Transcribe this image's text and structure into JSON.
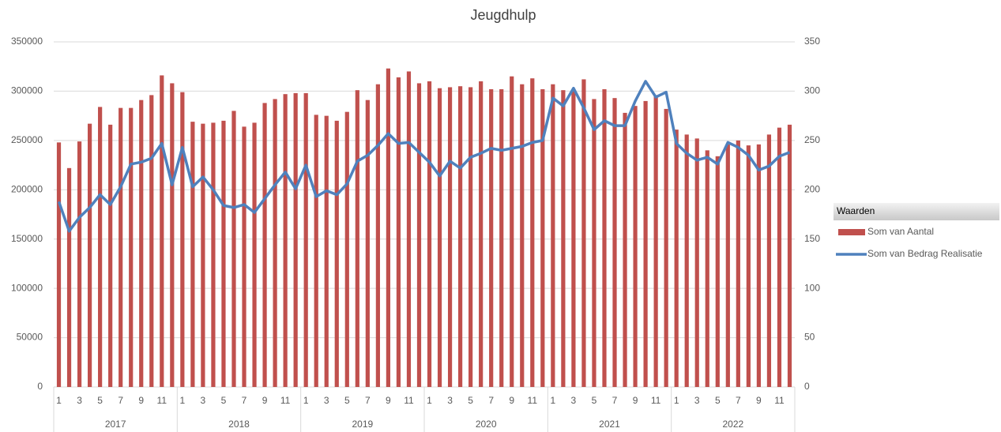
{
  "chart_data": {
    "type": "bar-line",
    "title": "Jeugdhulp",
    "categories": [
      "1",
      null,
      "3",
      null,
      "5",
      null,
      "7",
      null,
      "9",
      null,
      "11",
      null,
      "1",
      null,
      "3",
      null,
      "5",
      null,
      "7",
      null,
      "9",
      null,
      "11",
      null,
      "1",
      null,
      "3",
      null,
      "5",
      null,
      "7",
      null,
      "9",
      null,
      "11",
      null,
      "1",
      null,
      "3",
      null,
      "5",
      null,
      "7",
      null,
      "9",
      null,
      "11",
      null,
      "1",
      null,
      "3",
      null,
      "5",
      null,
      "7",
      null,
      "9",
      null,
      "11",
      null,
      "1",
      null,
      "3",
      null,
      "5",
      null,
      "7",
      null,
      "9",
      null,
      "11",
      null
    ],
    "years": [
      "2017",
      "2018",
      "2019",
      "2020",
      "2021",
      "2022"
    ],
    "series": [
      {
        "name": "Som van Aantal",
        "type": "bar",
        "color": "#c0504d",
        "values": [
          248000,
          222000,
          249000,
          267000,
          284000,
          266000,
          283000,
          283000,
          291000,
          296000,
          316000,
          308000,
          299000,
          269000,
          267000,
          268000,
          270000,
          280000,
          264000,
          268000,
          288000,
          292000,
          297000,
          298000,
          298000,
          276000,
          275000,
          270000,
          279000,
          301000,
          291000,
          307000,
          323000,
          314000,
          320000,
          308000,
          310000,
          303000,
          304000,
          305000,
          304000,
          310000,
          302000,
          302000,
          315000,
          307000,
          313000,
          302000,
          307000,
          301000,
          302000,
          312000,
          292000,
          302000,
          293000,
          278000,
          285000,
          290000,
          296000,
          282000,
          261000,
          256000,
          252000,
          240000,
          234000,
          246000,
          250000,
          245000,
          246000,
          256000,
          263000,
          266000
        ]
      },
      {
        "name": "Som van Bedrag Realisatie",
        "type": "line",
        "axis": "y2",
        "color": "#4f81bd",
        "values": [
          188,
          158,
          172,
          182,
          195,
          185,
          203,
          226,
          228,
          232,
          247,
          205,
          243,
          203,
          213,
          200,
          184,
          182,
          185,
          177,
          191,
          205,
          218,
          201,
          225,
          193,
          199,
          195,
          206,
          229,
          235,
          245,
          257,
          247,
          248,
          238,
          228,
          214,
          229,
          222,
          233,
          237,
          242,
          240,
          242,
          244,
          248,
          250,
          293,
          285,
          303,
          283,
          261,
          270,
          265,
          265,
          290,
          310,
          294,
          299,
          247,
          237,
          230,
          233,
          226,
          248,
          243,
          235,
          220,
          224,
          234,
          238
        ]
      }
    ],
    "ylim": [
      0,
      350000
    ],
    "yticks": [
      0,
      50000,
      100000,
      150000,
      200000,
      250000,
      300000,
      350000
    ],
    "y2lim": [
      0,
      350
    ],
    "y2ticks": [
      0,
      50,
      100,
      150,
      200,
      250,
      300,
      350
    ],
    "grid": true,
    "legend_title": "Waarden",
    "legend": "right"
  }
}
